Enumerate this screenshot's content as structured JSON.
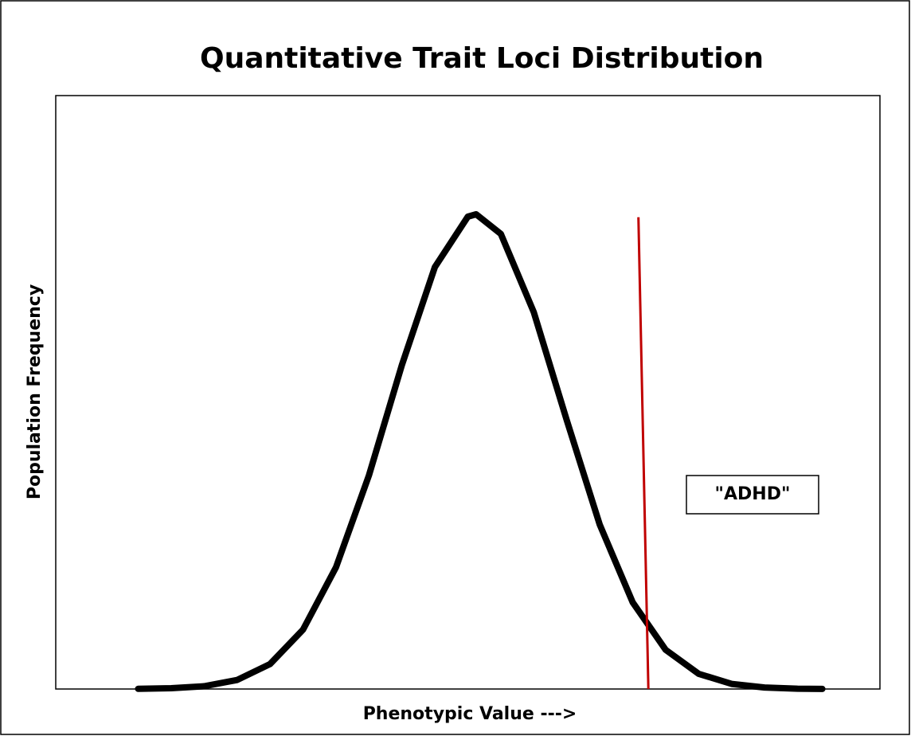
{
  "chart_data": {
    "type": "line",
    "title": "Quantitative Trait Loci Distribution",
    "xlabel": "Phenotypic Value --->",
    "ylabel": "Population Frequency",
    "xlim": [
      0,
      100
    ],
    "ylim": [
      0,
      100
    ],
    "series": [
      {
        "color": "#000000",
        "x": [
          10,
          14,
          18,
          22,
          26,
          30,
          34,
          38,
          42,
          46,
          50,
          51,
          54,
          58,
          62,
          66,
          70,
          74,
          78,
          82,
          86,
          90,
          93
        ],
        "values": [
          0.03,
          0.13,
          0.47,
          1.52,
          4.2,
          10.0,
          20.5,
          36.0,
          54.6,
          71.1,
          79.6,
          80,
          76.7,
          63.5,
          45.3,
          27.7,
          14.6,
          6.6,
          2.57,
          0.86,
          0.25,
          0.06,
          0.02
        ]
      }
    ],
    "threshold": {
      "color": "#c00000",
      "x": [
        70.7,
        71.9
      ],
      "values": [
        79.5,
        0
      ]
    },
    "annotation": "\"ADHD\""
  }
}
